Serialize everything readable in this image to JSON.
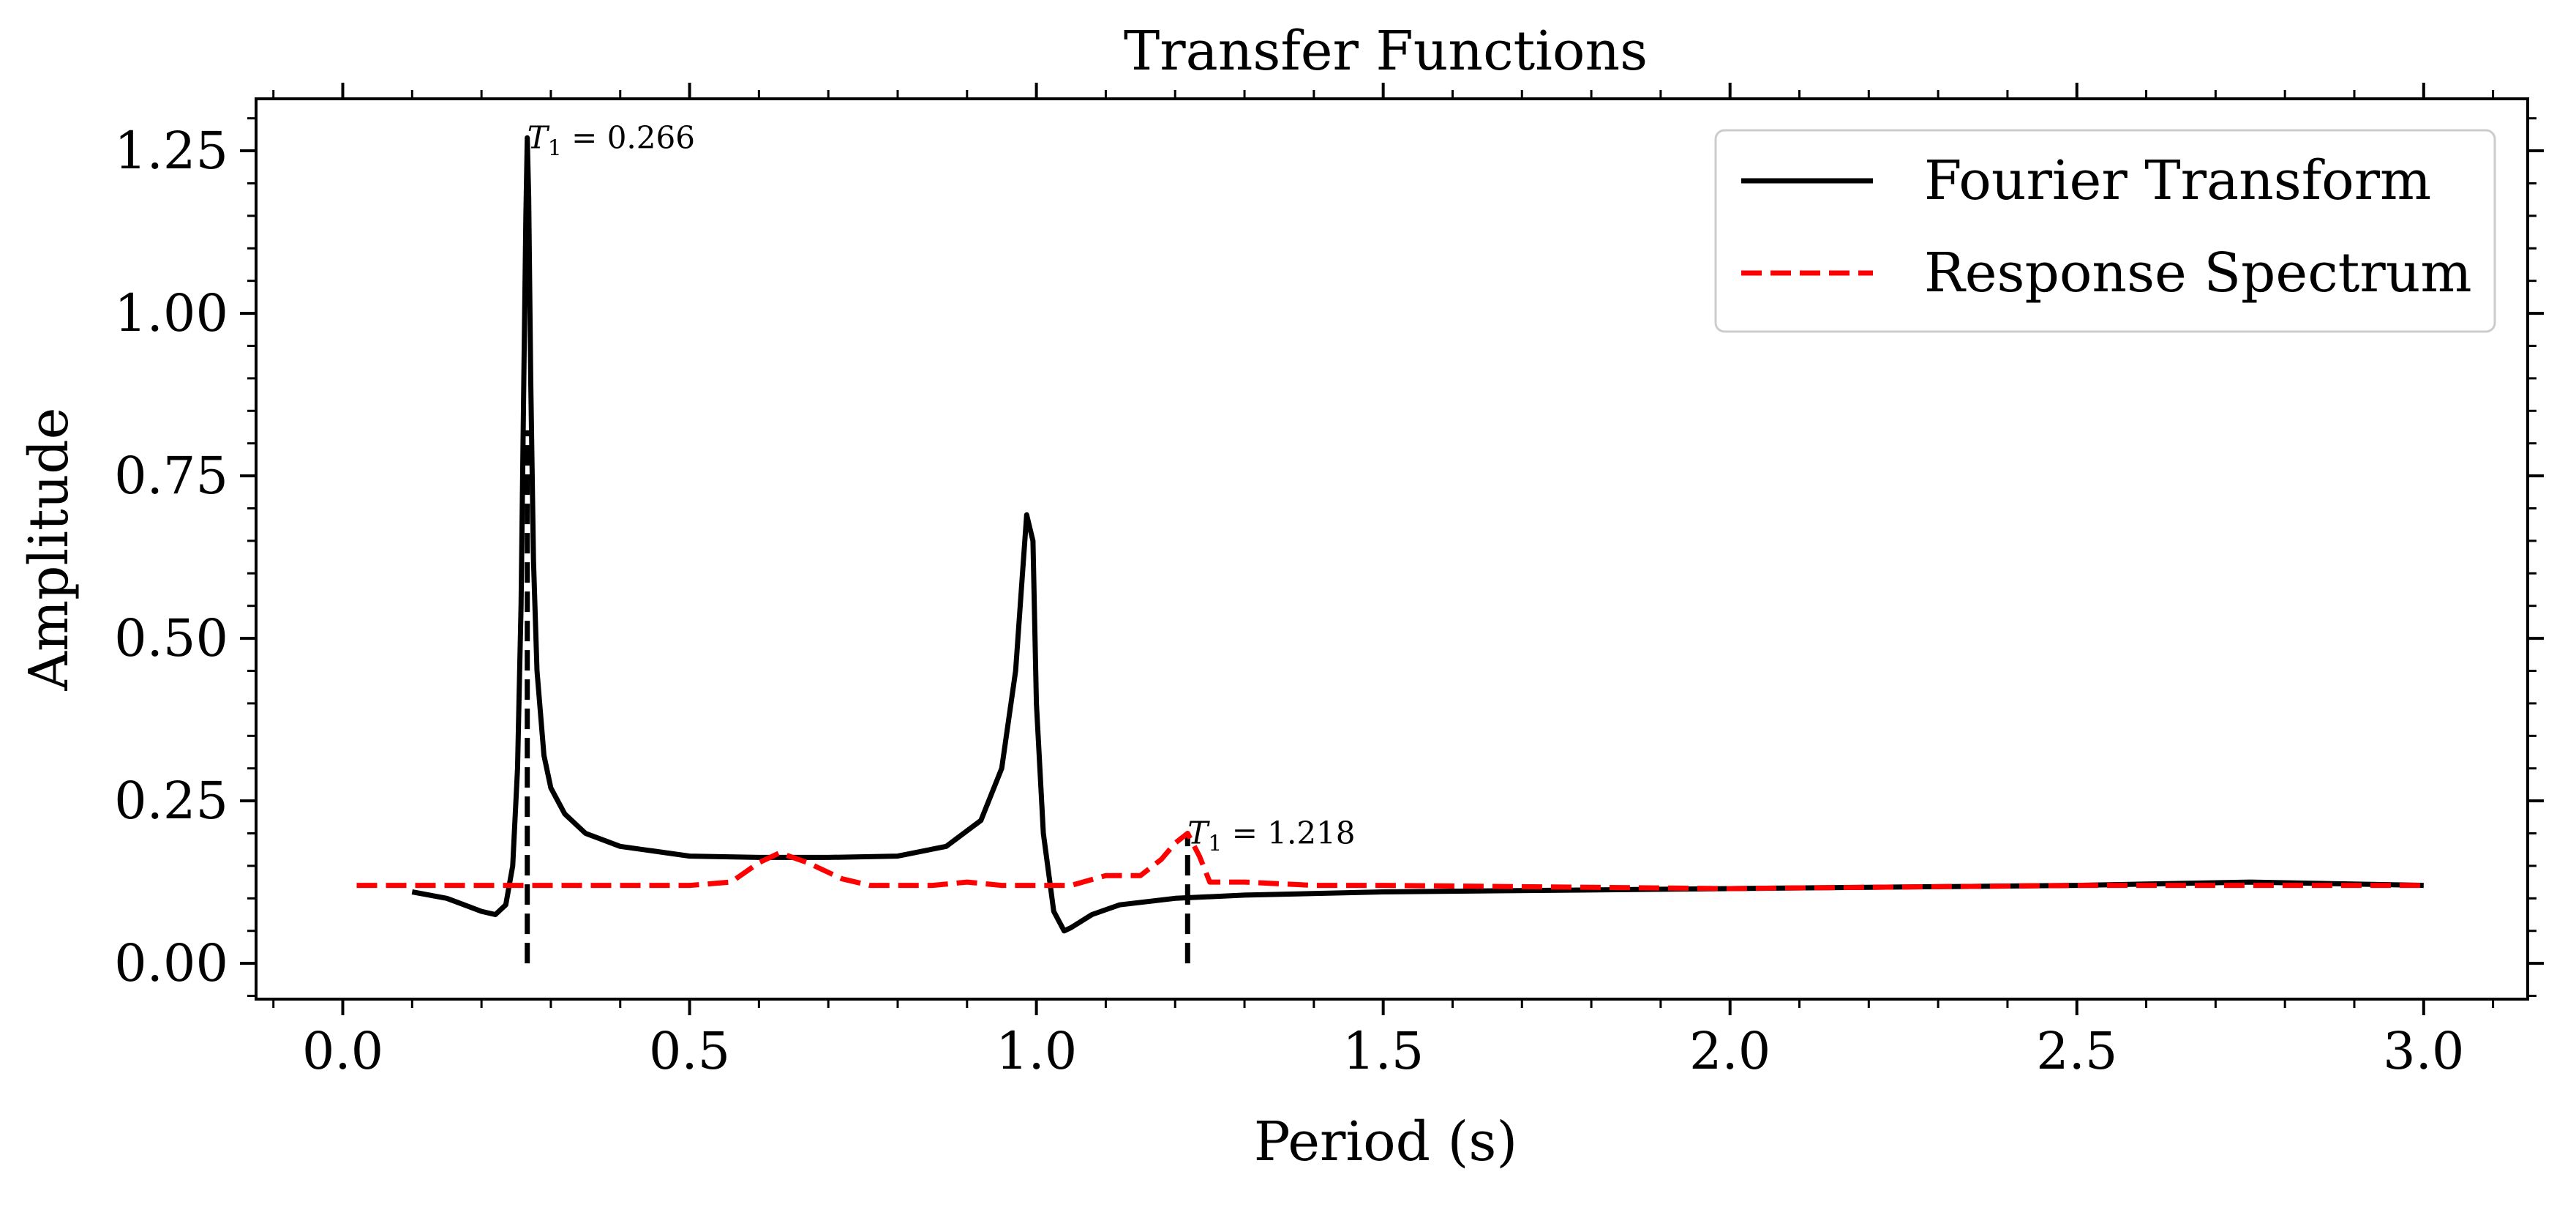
{
  "chart_data": {
    "type": "line",
    "title": "Transfer Functions",
    "xlabel": "Period (s)",
    "ylabel": "Amplitude",
    "xlim": [
      -0.125,
      3.15
    ],
    "ylim": [
      -0.055,
      1.33
    ],
    "xticks": [
      0.0,
      0.5,
      1.0,
      1.5,
      2.0,
      2.5,
      3.0
    ],
    "xtick_labels": [
      "0.0",
      "0.5",
      "1.0",
      "1.5",
      "2.0",
      "2.5",
      "3.0"
    ],
    "yticks": [
      0.0,
      0.25,
      0.5,
      0.75,
      1.0,
      1.25
    ],
    "ytick_labels": [
      "0.00",
      "0.25",
      "0.50",
      "0.75",
      "1.00",
      "1.25"
    ],
    "grid": false,
    "legend": "top-right",
    "series": [
      {
        "name": "Fourier Transform",
        "color": "#000000",
        "style": "solid",
        "x": [
          0.1,
          0.15,
          0.2,
          0.22,
          0.235,
          0.245,
          0.252,
          0.257,
          0.261,
          0.264,
          0.266,
          0.268,
          0.271,
          0.275,
          0.28,
          0.29,
          0.3,
          0.32,
          0.35,
          0.4,
          0.5,
          0.6,
          0.7,
          0.8,
          0.87,
          0.92,
          0.95,
          0.97,
          0.98,
          0.986,
          0.995,
          1.0,
          1.01,
          1.025,
          1.04,
          1.05,
          1.08,
          1.12,
          1.2,
          1.3,
          1.5,
          2.0,
          2.5,
          2.75,
          3.0
        ],
        "y": [
          0.11,
          0.1,
          0.08,
          0.075,
          0.09,
          0.15,
          0.3,
          0.55,
          0.9,
          1.15,
          1.27,
          1.18,
          0.9,
          0.62,
          0.45,
          0.32,
          0.27,
          0.23,
          0.2,
          0.18,
          0.165,
          0.163,
          0.163,
          0.165,
          0.18,
          0.22,
          0.3,
          0.45,
          0.6,
          0.69,
          0.65,
          0.4,
          0.2,
          0.08,
          0.05,
          0.055,
          0.075,
          0.09,
          0.1,
          0.105,
          0.11,
          0.115,
          0.12,
          0.125,
          0.12
        ]
      },
      {
        "name": "Response Spectrum",
        "color": "#ff0000",
        "style": "dashed",
        "x": [
          0.02,
          0.1,
          0.2,
          0.3,
          0.4,
          0.5,
          0.56,
          0.6,
          0.63,
          0.67,
          0.72,
          0.76,
          0.8,
          0.85,
          0.9,
          0.95,
          1.0,
          1.05,
          1.1,
          1.15,
          1.18,
          1.2,
          1.218,
          1.235,
          1.25,
          1.3,
          1.4,
          1.5,
          2.0,
          2.5,
          3.0
        ],
        "y": [
          0.12,
          0.12,
          0.12,
          0.12,
          0.12,
          0.12,
          0.125,
          0.155,
          0.17,
          0.155,
          0.13,
          0.12,
          0.12,
          0.12,
          0.125,
          0.12,
          0.12,
          0.12,
          0.135,
          0.135,
          0.16,
          0.185,
          0.2,
          0.165,
          0.125,
          0.125,
          0.12,
          0.12,
          0.115,
          0.12,
          0.12
        ]
      }
    ],
    "vlines": [
      {
        "x": 0.266,
        "y0": 0.0,
        "y1": 0.82,
        "color": "#000000",
        "style": "dashed"
      },
      {
        "x": 1.218,
        "y0": 0.0,
        "y1": 0.2,
        "color": "#000000",
        "style": "dashed"
      }
    ],
    "annotations": [
      {
        "symbol": "T",
        "subscript": "1",
        "text": " = 0.266",
        "x": 0.266,
        "y": 1.27
      },
      {
        "symbol": "T",
        "subscript": "1",
        "text": " = 1.218",
        "x": 1.218,
        "y": 0.2
      }
    ]
  }
}
